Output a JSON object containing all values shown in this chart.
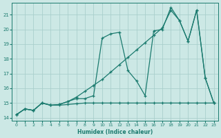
{
  "bg_color": "#cce8e5",
  "grid_color": "#aacfcc",
  "line_color": "#1a7a6e",
  "xlabel": "Humidex (Indice chaleur)",
  "xlim": [
    -0.5,
    23.5
  ],
  "ylim": [
    13.8,
    21.8
  ],
  "yticks": [
    14,
    15,
    16,
    17,
    18,
    19,
    20,
    21
  ],
  "xticks": [
    0,
    1,
    2,
    3,
    4,
    5,
    6,
    7,
    8,
    9,
    10,
    11,
    12,
    13,
    14,
    15,
    16,
    17,
    18,
    19,
    20,
    21,
    22,
    23
  ],
  "series1_x": [
    0,
    1,
    2,
    3,
    4,
    5,
    6,
    7,
    8,
    9,
    10,
    11,
    12,
    13,
    14,
    15,
    16,
    17,
    18,
    19,
    20,
    21,
    22,
    23
  ],
  "series1_y": [
    14.2,
    14.6,
    14.5,
    15.0,
    14.85,
    14.85,
    14.9,
    14.95,
    15.0,
    15.0,
    15.0,
    15.0,
    15.0,
    15.0,
    15.0,
    15.0,
    15.0,
    15.0,
    15.0,
    15.0,
    15.0,
    15.0,
    15.0,
    15.0
  ],
  "series2_x": [
    0,
    1,
    2,
    3,
    4,
    5,
    6,
    7,
    8,
    9,
    10,
    11,
    12,
    13,
    14,
    15,
    16,
    17,
    18,
    19,
    20,
    21,
    22,
    23
  ],
  "series2_y": [
    14.2,
    14.6,
    14.5,
    15.0,
    14.85,
    14.9,
    15.1,
    15.3,
    15.3,
    15.5,
    19.4,
    19.7,
    19.8,
    17.2,
    16.5,
    15.5,
    19.9,
    20.0,
    21.5,
    20.6,
    19.2,
    21.3,
    16.7,
    15.0
  ],
  "series3_x": [
    0,
    1,
    2,
    3,
    4,
    5,
    6,
    7,
    8,
    9,
    10,
    11,
    12,
    13,
    14,
    15,
    16,
    17,
    18,
    19,
    20,
    21,
    22,
    23
  ],
  "series3_y": [
    14.2,
    14.6,
    14.5,
    15.0,
    14.85,
    14.9,
    15.1,
    15.4,
    15.8,
    16.2,
    16.6,
    17.1,
    17.6,
    18.1,
    18.6,
    19.1,
    19.6,
    20.1,
    21.3,
    20.6,
    19.2,
    21.3,
    16.7,
    15.0
  ]
}
